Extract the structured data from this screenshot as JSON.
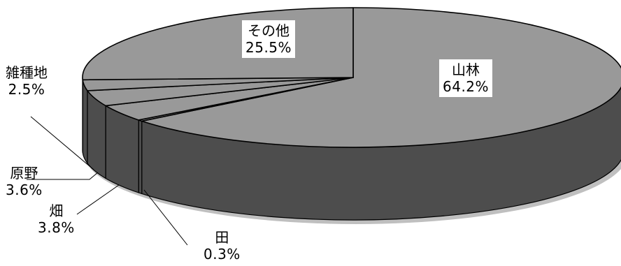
{
  "chart_data": {
    "type": "pie",
    "title": "",
    "style": "3d",
    "slices": [
      {
        "label": "山林",
        "value": 64.2,
        "value_label": "64.2%"
      },
      {
        "label": "田",
        "value": 0.3,
        "value_label": "0.3%"
      },
      {
        "label": "畑",
        "value": 3.8,
        "value_label": "3.8%"
      },
      {
        "label": "原野",
        "value": 3.6,
        "value_label": "3.6%"
      },
      {
        "label": "雑種地",
        "value": 2.5,
        "value_label": "2.5%"
      },
      {
        "label": "その他",
        "value": 25.5,
        "value_label": "25.5%"
      }
    ],
    "colors": {
      "top": "#999999",
      "side": "#4d4d4d",
      "outline": "#000000"
    }
  }
}
